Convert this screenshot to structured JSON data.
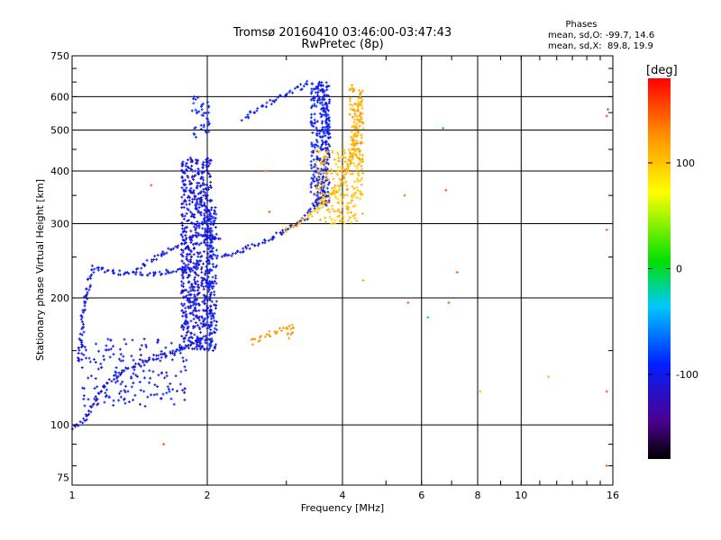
{
  "chart_data": {
    "type": "scatter",
    "title": "Tromsø 20160410 03:46:00-03:47:43",
    "subtitle": "RwPretec (8p)",
    "xlabel": "Frequency [MHz]",
    "ylabel": "Stationary phase Virtual Height [km]",
    "x_scale": "log",
    "y_scale": "log",
    "xlim": [
      1,
      16
    ],
    "ylim": [
      72,
      750
    ],
    "x_ticks": [
      "1",
      "2",
      "4",
      "6",
      "8",
      "10",
      "16"
    ],
    "y_ticks": [
      "75",
      "100",
      "200",
      "300",
      "400",
      "500",
      "600",
      "750"
    ],
    "grid": true,
    "phase_stats": {
      "heading": "Phases",
      "o_line": "mean, sd,O: -99.7, 14.6",
      "x_line": "mean, sd,X:  89.8, 19.9"
    },
    "colorbar": {
      "label": "[deg]",
      "range": [
        -180,
        180
      ],
      "ticks": [
        "100",
        "0",
        "-100"
      ],
      "tick_values": [
        100,
        0,
        -100
      ]
    },
    "traces": [
      {
        "phase": -110,
        "points": [
          [
            1.0,
            98
          ],
          [
            1.05,
            100
          ],
          [
            1.08,
            106
          ],
          [
            1.12,
            114
          ],
          [
            1.18,
            124
          ],
          [
            1.25,
            131
          ],
          [
            1.35,
            138
          ],
          [
            1.5,
            143
          ],
          [
            1.65,
            148
          ],
          [
            1.8,
            154
          ],
          [
            1.95,
            160
          ],
          [
            2.0,
            163
          ]
        ]
      },
      {
        "phase": -105,
        "points": [
          [
            1.04,
            140
          ],
          [
            1.05,
            165
          ],
          [
            1.06,
            185
          ],
          [
            1.08,
            205
          ],
          [
            1.1,
            225
          ],
          [
            1.12,
            238
          ],
          [
            1.2,
            232
          ],
          [
            1.3,
            229
          ],
          [
            1.45,
            227
          ],
          [
            1.6,
            230
          ],
          [
            1.8,
            233
          ],
          [
            1.95,
            236
          ]
        ]
      },
      {
        "phase": -100,
        "points": [
          [
            1.4,
            235
          ],
          [
            1.55,
            250
          ],
          [
            1.7,
            265
          ],
          [
            1.8,
            275
          ],
          [
            1.9,
            282
          ],
          [
            2.0,
            285
          ],
          [
            2.15,
            275
          ]
        ]
      },
      {
        "phase": -100,
        "points": [
          [
            2.0,
            250
          ],
          [
            2.2,
            252
          ],
          [
            2.4,
            260
          ],
          [
            2.6,
            268
          ],
          [
            2.8,
            278
          ],
          [
            3.0,
            290
          ],
          [
            3.2,
            300
          ],
          [
            3.4,
            320
          ],
          [
            3.55,
            345
          ],
          [
            3.65,
            380
          ],
          [
            3.7,
            430
          ],
          [
            3.72,
            500
          ],
          [
            3.7,
            560
          ],
          [
            3.65,
            610
          ],
          [
            3.55,
            650
          ]
        ]
      },
      {
        "phase": -95,
        "points": [
          [
            2.4,
            530
          ],
          [
            2.55,
            555
          ],
          [
            2.75,
            580
          ],
          [
            2.95,
            605
          ],
          [
            3.2,
            630
          ],
          [
            3.4,
            650
          ]
        ]
      },
      {
        "phase": 110,
        "points": [
          [
            3.0,
            290
          ],
          [
            3.2,
            300
          ],
          [
            3.4,
            315
          ],
          [
            3.6,
            330
          ],
          [
            3.8,
            350
          ],
          [
            3.95,
            370
          ],
          [
            4.05,
            390
          ],
          [
            4.15,
            420
          ],
          [
            4.25,
            460
          ],
          [
            4.3,
            510
          ],
          [
            4.35,
            560
          ],
          [
            4.4,
            620
          ]
        ]
      },
      {
        "phase": 120,
        "points": [
          [
            2.5,
            157
          ],
          [
            2.9,
            168
          ],
          [
            3.1,
            172
          ],
          [
            3.0,
            160
          ]
        ]
      }
    ],
    "clouds": [
      {
        "phase": -105,
        "xmin": 1.75,
        "xmax": 2.05,
        "ymin": 150,
        "ymax": 430,
        "n": 700
      },
      {
        "phase": -100,
        "xmin": 1.05,
        "xmax": 1.8,
        "ymin": 110,
        "ymax": 160,
        "n": 180
      },
      {
        "phase": -95,
        "xmin": 2.0,
        "xmax": 2.1,
        "ymin": 150,
        "ymax": 330,
        "n": 120
      },
      {
        "phase": -95,
        "xmin": 3.4,
        "xmax": 3.75,
        "ymin": 330,
        "ymax": 650,
        "n": 260
      },
      {
        "phase": -90,
        "xmin": 1.85,
        "xmax": 2.05,
        "ymin": 480,
        "ymax": 600,
        "n": 40
      },
      {
        "phase": 105,
        "xmin": 3.5,
        "xmax": 4.45,
        "ymin": 300,
        "ymax": 450,
        "n": 220
      },
      {
        "phase": 115,
        "xmin": 4.15,
        "xmax": 4.45,
        "ymin": 420,
        "ymax": 640,
        "n": 90
      }
    ],
    "scatter_points": [
      {
        "x": 5.6,
        "y": 195,
        "phase": 150
      },
      {
        "x": 6.9,
        "y": 195,
        "phase": 150
      },
      {
        "x": 6.2,
        "y": 180,
        "phase": -40
      },
      {
        "x": 5.5,
        "y": 350,
        "phase": 140
      },
      {
        "x": 6.8,
        "y": 360,
        "phase": 150
      },
      {
        "x": 7.2,
        "y": 230,
        "phase": 150
      },
      {
        "x": 8.1,
        "y": 120,
        "phase": 110
      },
      {
        "x": 11.5,
        "y": 130,
        "phase": 110
      },
      {
        "x": 15.5,
        "y": 120,
        "phase": 150
      },
      {
        "x": 15.5,
        "y": 80,
        "phase": 150
      },
      {
        "x": 15.5,
        "y": 290,
        "phase": 150
      },
      {
        "x": 15.5,
        "y": 540,
        "phase": 150
      },
      {
        "x": 15.6,
        "y": 560,
        "phase": 150
      },
      {
        "x": 1.6,
        "y": 90,
        "phase": 150
      },
      {
        "x": 4.45,
        "y": 220,
        "phase": 120
      },
      {
        "x": 6.7,
        "y": 505,
        "phase": -10
      },
      {
        "x": 1.5,
        "y": 370,
        "phase": 150
      },
      {
        "x": 2.7,
        "y": 400,
        "phase": 150
      },
      {
        "x": 2.75,
        "y": 320,
        "phase": 150
      }
    ]
  }
}
